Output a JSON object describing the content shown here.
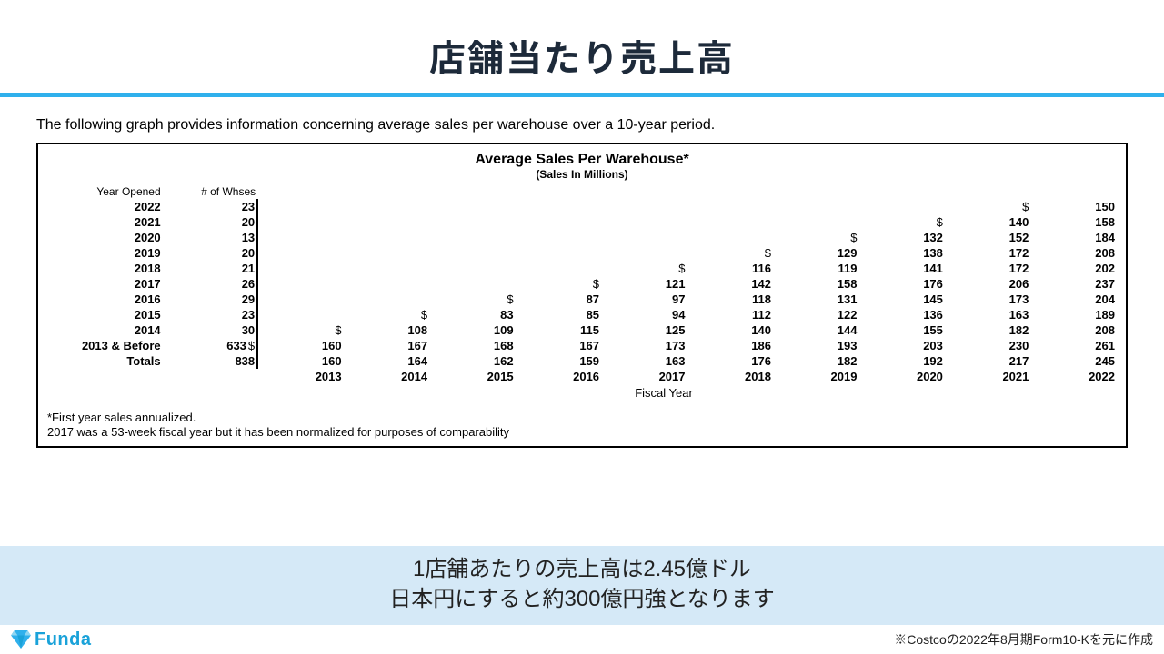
{
  "colors": {
    "rule": "#2fb0ec",
    "title": "#1d2a3a",
    "callout_bg": "#d5e9f7",
    "logo": "#1aa2d9",
    "border": "#000000"
  },
  "title": "店舗当たり売上高",
  "intro": "The following graph provides information concerning average sales per warehouse over a 10-year period.",
  "chart": {
    "title": "Average Sales Per Warehouse*",
    "subtitle": "(Sales In Millions)",
    "col_year": "Year Opened",
    "col_whses": "# of Whses",
    "fiscal_years": [
      "2013",
      "2014",
      "2015",
      "2016",
      "2017",
      "2018",
      "2019",
      "2020",
      "2021",
      "2022"
    ],
    "fiscal_label": "Fiscal Year",
    "rows": [
      {
        "label": "2022",
        "bold": true,
        "whses": "23",
        "vals": [
          "",
          "",
          "",
          "",
          "",
          "",
          "",
          "",
          "$",
          "150"
        ]
      },
      {
        "label": "2021",
        "bold": true,
        "whses": "20",
        "vals": [
          "",
          "",
          "",
          "",
          "",
          "",
          "",
          "$",
          "140",
          "158"
        ]
      },
      {
        "label": "2020",
        "bold": true,
        "whses": "13",
        "vals": [
          "",
          "",
          "",
          "",
          "",
          "",
          "$",
          "132",
          "152",
          "184"
        ]
      },
      {
        "label": "2019",
        "bold": true,
        "whses": "20",
        "vals": [
          "",
          "",
          "",
          "",
          "",
          "$",
          "129",
          "138",
          "172",
          "208"
        ]
      },
      {
        "label": "2018",
        "bold": true,
        "whses": "21",
        "vals": [
          "",
          "",
          "",
          "",
          "$",
          "116",
          "119",
          "141",
          "172",
          "202"
        ]
      },
      {
        "label": "2017",
        "bold": true,
        "whses": "26",
        "vals": [
          "",
          "",
          "",
          "$",
          "121",
          "142",
          "158",
          "176",
          "206",
          "237"
        ]
      },
      {
        "label": "2016",
        "bold": true,
        "whses": "29",
        "vals": [
          "",
          "",
          "$",
          "87",
          "97",
          "118",
          "131",
          "145",
          "173",
          "204"
        ]
      },
      {
        "label": "2015",
        "bold": true,
        "whses": "23",
        "vals": [
          "",
          "$",
          "83",
          "85",
          "94",
          "112",
          "122",
          "136",
          "163",
          "189"
        ]
      },
      {
        "label": "2014",
        "bold": true,
        "whses": "30",
        "vals": [
          "$",
          "108",
          "109",
          "115",
          "125",
          "140",
          "144",
          "155",
          "182",
          "208"
        ]
      },
      {
        "label": "2013 & Before",
        "bold": true,
        "whses": "633",
        "dollar": "$",
        "vals": [
          "160",
          "167",
          "168",
          "167",
          "173",
          "186",
          "193",
          "203",
          "230",
          "261"
        ]
      },
      {
        "label": "Totals",
        "bold": true,
        "whses": "838",
        "vals": [
          "160",
          "164",
          "162",
          "159",
          "163",
          "176",
          "182",
          "192",
          "217",
          "245"
        ]
      }
    ],
    "note1": "*First year sales annualized.",
    "note2": "2017 was a 53-week fiscal year but it has been normalized for purposes of comparability"
  },
  "callout_line1": "1店舗あたりの売上高は2.45億ドル",
  "callout_line2": "日本円にすると約300億円強となります",
  "logo_text": "Funda",
  "source": "※Costcoの2022年8月期Form10-Kを元に作成"
}
